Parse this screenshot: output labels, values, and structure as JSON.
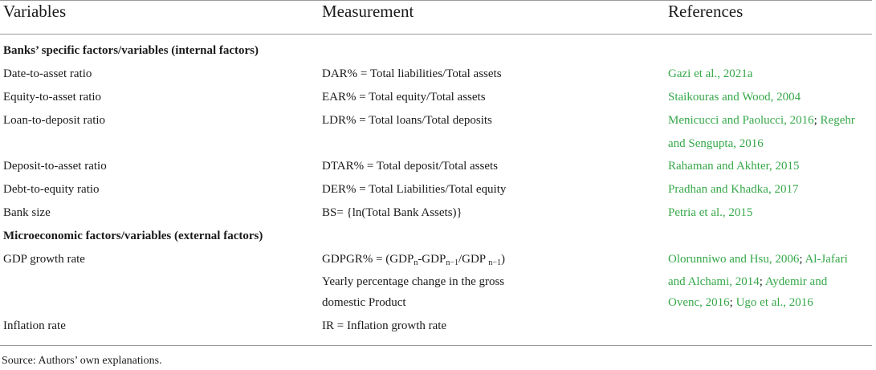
{
  "headers": {
    "variables": "Variables",
    "measurement": "Measurement",
    "references": "References"
  },
  "sections": {
    "internal": "Banks’ specific factors/variables (internal factors)",
    "external": "Microeconomic factors/variables (external factors)"
  },
  "rows": [
    {
      "variable": "Date-to-asset ratio",
      "measurement": "DAR% = Total liabilities/Total assets",
      "refs": [
        "Gazi et al., 2021a"
      ]
    },
    {
      "variable": "Equity-to-asset ratio",
      "measurement": "EAR% = Total equity/Total assets",
      "refs": [
        "Staikouras and Wood, 2004"
      ]
    },
    {
      "variable": "Loan-to-deposit ratio",
      "measurement": "LDR% = Total loans/Total deposits",
      "refs_line1_a": "Menicucci and Paolucci, 2016",
      "refs_sep": ";",
      "refs_line1_b": "Regehr",
      "refs_line2": "and Sengupta, 2016"
    },
    {
      "variable": "Deposit-to-asset ratio",
      "measurement": "DTAR% = Total deposit/Total assets",
      "refs": [
        "Rahaman and Akhter, 2015"
      ]
    },
    {
      "variable": "Debt-to-equity ratio",
      "measurement": "DER% = Total Liabilities/Total equity",
      "refs": [
        "Pradhan and Khadka, 2017"
      ]
    },
    {
      "variable": "Bank size",
      "measurement": "BS= {ln(Total Bank Assets)}",
      "refs": [
        "Petria et al., 2015"
      ]
    },
    {
      "variable": "GDP growth rate",
      "formula": {
        "lhs": "GDPGR% = (GDP",
        "sub1": "n",
        "mid1": "-GDP",
        "sub2": "n−1",
        "mid2": "/GDP ",
        "sub3": "n−1",
        "end": ")"
      },
      "meas_line2": "Yearly percentage change in the gross",
      "meas_line3": "domestic Product",
      "ref_l1_a": "Olorunniwo and Hsu, 2006",
      "ref_l1_b": "Al-Jafari",
      "ref_l2_a": "and Alchami, 2014",
      "ref_l2_b": "Aydemir and",
      "ref_l3_a": "Ovenc, 2016",
      "ref_l3_b": "Ugo et al., 2016",
      "sep": ";"
    },
    {
      "variable": "Inflation rate",
      "measurement": "IR = Inflation growth rate"
    }
  ],
  "source_note": "Source: Authors’ own explanations.",
  "colors": {
    "reference_link": "#36a84a",
    "rule": "#9a9a9a"
  }
}
